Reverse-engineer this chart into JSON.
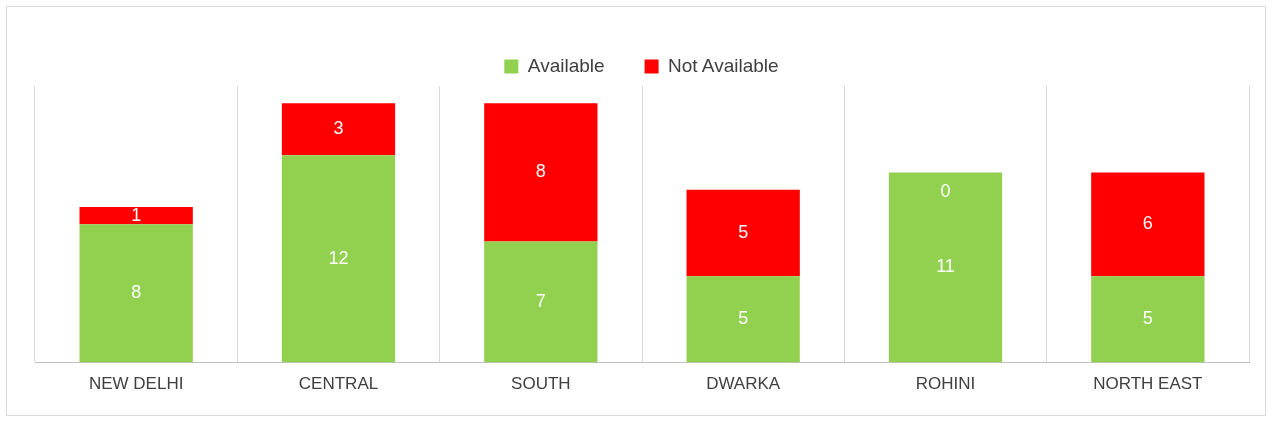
{
  "chart_data": {
    "type": "bar",
    "stacked": true,
    "categories": [
      "NEW DELHI",
      "CENTRAL",
      "SOUTH",
      "DWARKA",
      "ROHINI",
      "NORTH EAST"
    ],
    "series": [
      {
        "name": "Available",
        "color": "#92d050",
        "values": [
          8,
          12,
          7,
          5,
          11,
          5
        ]
      },
      {
        "name": "Not Available",
        "color": "#ff0000",
        "values": [
          1,
          3,
          8,
          5,
          0,
          6
        ]
      }
    ],
    "data_labels": true,
    "legend": "top",
    "grid": "x"
  }
}
